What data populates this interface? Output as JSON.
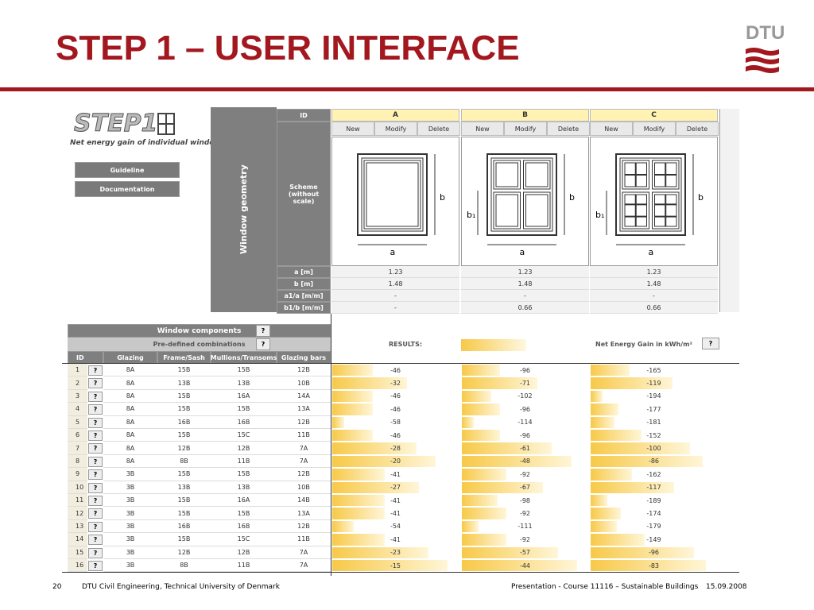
{
  "slide": {
    "title": "STEP 1 – USER INTERFACE",
    "logo": "DTU",
    "footer": {
      "page": "20",
      "org": "DTU Civil Engineering, Technical University of Denmark",
      "course": "Presentation - Course 11116 – Sustainable Buildings",
      "date": "15.09.2008"
    }
  },
  "app": {
    "logo": "STEP1",
    "subtitle": "Net energy gain of individual windows",
    "buttons": [
      "Guideline",
      "Documentation"
    ],
    "help": "?",
    "geometry": {
      "panel": "Window geometry",
      "row_labels": [
        "ID",
        "Scheme\n(without scale)",
        "a [m]",
        "b [m]",
        "a1/a [m/m]",
        "b1/b [m/m]"
      ],
      "actions": [
        "New",
        "Modify",
        "Delete"
      ],
      "dim_labels": [
        "a",
        "b",
        "b₁"
      ],
      "columns": [
        {
          "id": "A",
          "values": [
            "1.23",
            "1.48",
            "-",
            "-"
          ]
        },
        {
          "id": "B",
          "values": [
            "1.23",
            "1.48",
            "-",
            "0.66"
          ]
        },
        {
          "id": "C",
          "values": [
            "1.23",
            "1.48",
            "-",
            "0.66"
          ]
        }
      ]
    },
    "components": {
      "title": "Window components",
      "predefined": "Pre-defined combinations",
      "headers": [
        "ID",
        "Glazing",
        "Frame/Sash",
        "Mullions/Transoms",
        "Glazing bars"
      ],
      "rows": [
        [
          "1",
          "8A",
          "15B",
          "15B",
          "12B"
        ],
        [
          "2",
          "8A",
          "13B",
          "13B",
          "10B"
        ],
        [
          "3",
          "8A",
          "15B",
          "16A",
          "14A"
        ],
        [
          "4",
          "8A",
          "15B",
          "15B",
          "13A"
        ],
        [
          "5",
          "8A",
          "16B",
          "16B",
          "12B"
        ],
        [
          "6",
          "8A",
          "15B",
          "15C",
          "11B"
        ],
        [
          "7",
          "8A",
          "12B",
          "12B",
          "7A"
        ],
        [
          "8",
          "8A",
          "8B",
          "11B",
          "7A"
        ],
        [
          "9",
          "3B",
          "15B",
          "15B",
          "12B"
        ],
        [
          "10",
          "3B",
          "13B",
          "13B",
          "10B"
        ],
        [
          "11",
          "3B",
          "15B",
          "16A",
          "14B"
        ],
        [
          "12",
          "3B",
          "15B",
          "15B",
          "13A"
        ],
        [
          "13",
          "3B",
          "16B",
          "16B",
          "12B"
        ],
        [
          "14",
          "3B",
          "15B",
          "15C",
          "11B"
        ],
        [
          "15",
          "3B",
          "12B",
          "12B",
          "7A"
        ],
        [
          "16",
          "3B",
          "8B",
          "11B",
          "7A"
        ]
      ]
    },
    "results": {
      "label": "RESULTS:",
      "unit_label": "Net Energy Gain in kWh/m²",
      "columns": [
        [
          -46,
          -32,
          -46,
          -46,
          -58,
          -46,
          -28,
          -20,
          -41,
          -27,
          -41,
          -41,
          -54,
          -41,
          -23,
          -15
        ],
        [
          -96,
          -71,
          -102,
          -96,
          -114,
          -96,
          -61,
          -48,
          -92,
          -67,
          -98,
          -92,
          -111,
          -92,
          -57,
          -44
        ],
        [
          -165,
          -119,
          -194,
          -177,
          -181,
          -152,
          -100,
          -86,
          -162,
          -117,
          -189,
          -174,
          -179,
          -149,
          -96,
          -83
        ]
      ]
    }
  }
}
